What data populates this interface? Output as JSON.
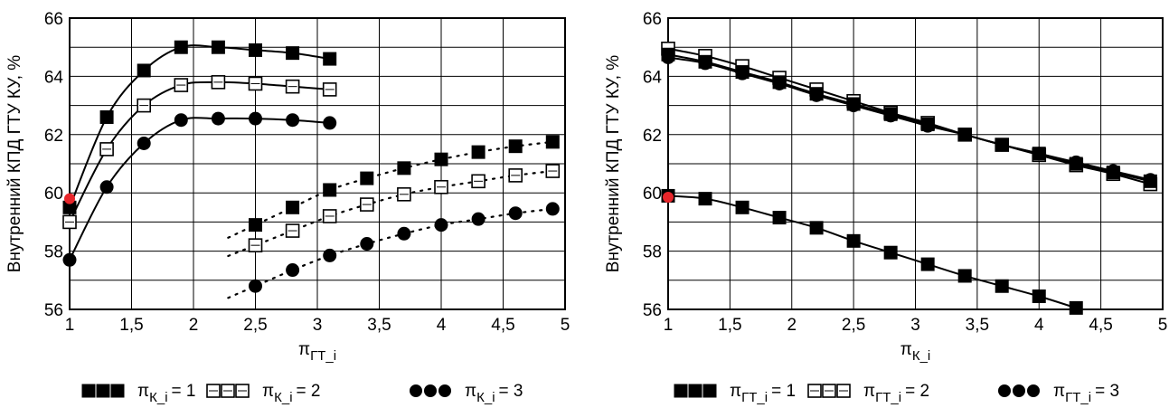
{
  "chart_data": [
    {
      "type": "line",
      "title": "",
      "xlabel": {
        "base": "π",
        "sub": "ГТ_i"
      },
      "ylabel": "Внутренний КПД ГТУ КУ, %",
      "xlim": [
        1,
        5
      ],
      "ylim": [
        56,
        66
      ],
      "xticks": [
        1,
        1.5,
        2,
        2.5,
        3,
        3.5,
        4,
        4.5,
        5
      ],
      "xtick_labels": [
        "1",
        "1,5",
        "2",
        "2,5",
        "3",
        "3,5",
        "4",
        "4,5",
        "5"
      ],
      "yticks": [
        56,
        58,
        60,
        62,
        64,
        66
      ],
      "ytick_labels": [
        "56",
        "58",
        "60",
        "62",
        "64",
        "66"
      ],
      "grid": true,
      "legend_position": "bottom",
      "highlight_point": {
        "x": 1,
        "y": 59.8,
        "color": "#e8262b"
      },
      "series": [
        {
          "name": "π",
          "name_sub": "К_i",
          "name_value": "= 1",
          "marker": "filled-square",
          "points": [
            [
              1.0,
              59.5
            ],
            [
              1.3,
              62.6
            ],
            [
              1.6,
              64.2
            ],
            [
              1.9,
              65.0
            ],
            [
              2.2,
              65.0
            ],
            [
              2.5,
              64.9
            ],
            [
              2.8,
              64.8
            ],
            [
              3.1,
              64.6
            ]
          ]
        },
        {
          "name": "π",
          "name_sub": "К_i",
          "name_value": "= 2",
          "marker": "open-square",
          "points": [
            [
              1.0,
              59.0
            ],
            [
              1.3,
              61.5
            ],
            [
              1.6,
              63.0
            ],
            [
              1.9,
              63.7
            ],
            [
              2.2,
              63.8
            ],
            [
              2.5,
              63.75
            ],
            [
              2.8,
              63.65
            ],
            [
              3.1,
              63.55
            ]
          ]
        },
        {
          "name": "π",
          "name_sub": "К_i",
          "name_value": "= 3",
          "marker": "filled-circle",
          "points": [
            [
              1.0,
              57.7
            ],
            [
              1.3,
              60.2
            ],
            [
              1.6,
              61.7
            ],
            [
              1.9,
              62.5
            ],
            [
              2.2,
              62.55
            ],
            [
              2.5,
              62.55
            ],
            [
              2.8,
              62.5
            ],
            [
              3.1,
              62.4
            ]
          ]
        },
        {
          "name": "",
          "marker": "filled-square",
          "dotted": true,
          "points": [
            [
              2.5,
              58.9
            ],
            [
              2.8,
              59.5
            ],
            [
              3.1,
              60.1
            ],
            [
              3.4,
              60.5
            ],
            [
              3.7,
              60.85
            ],
            [
              4.0,
              61.15
            ],
            [
              4.3,
              61.4
            ],
            [
              4.6,
              61.6
            ],
            [
              4.9,
              61.75
            ]
          ]
        },
        {
          "name": "",
          "marker": "open-square",
          "dotted": true,
          "points": [
            [
              2.5,
              58.2
            ],
            [
              2.8,
              58.7
            ],
            [
              3.1,
              59.2
            ],
            [
              3.4,
              59.6
            ],
            [
              3.7,
              59.95
            ],
            [
              4.0,
              60.2
            ],
            [
              4.3,
              60.4
            ],
            [
              4.6,
              60.6
            ],
            [
              4.9,
              60.75
            ]
          ]
        },
        {
          "name": "",
          "marker": "filled-circle",
          "dotted": true,
          "points": [
            [
              2.5,
              56.8
            ],
            [
              2.8,
              57.35
            ],
            [
              3.1,
              57.85
            ],
            [
              3.4,
              58.25
            ],
            [
              3.7,
              58.6
            ],
            [
              4.0,
              58.9
            ],
            [
              4.3,
              59.1
            ],
            [
              4.6,
              59.3
            ],
            [
              4.9,
              59.45
            ]
          ]
        }
      ]
    },
    {
      "type": "line",
      "title": "",
      "xlabel": {
        "base": "π",
        "sub": "К_i"
      },
      "ylabel": "Внутренний КПД ГТУ КУ, %",
      "xlim": [
        1,
        5
      ],
      "ylim": [
        56,
        66
      ],
      "xticks": [
        1,
        1.5,
        2,
        2.5,
        3,
        3.5,
        4,
        4.5,
        5
      ],
      "xtick_labels": [
        "1",
        "1,5",
        "2",
        "2,5",
        "3",
        "3,5",
        "4",
        "4,5",
        "5"
      ],
      "yticks": [
        56,
        58,
        60,
        62,
        64,
        66
      ],
      "ytick_labels": [
        "56",
        "58",
        "60",
        "62",
        "64",
        "66"
      ],
      "grid": true,
      "legend_position": "bottom",
      "highlight_point": {
        "x": 1,
        "y": 59.85,
        "color": "#e8262b"
      },
      "series": [
        {
          "name": "π",
          "name_sub": "ГТ_i",
          "name_value": "= 1",
          "marker": "filled-square",
          "points": [
            [
              1.0,
              59.9
            ],
            [
              1.3,
              59.8
            ],
            [
              1.6,
              59.5
            ],
            [
              1.9,
              59.15
            ],
            [
              2.2,
              58.8
            ],
            [
              2.5,
              58.35
            ],
            [
              2.8,
              57.95
            ],
            [
              3.1,
              57.55
            ],
            [
              3.4,
              57.15
            ],
            [
              3.7,
              56.8
            ],
            [
              4.0,
              56.45
            ],
            [
              4.3,
              56.05
            ]
          ]
        },
        {
          "name": "π",
          "name_sub": "ГТ_i",
          "name_value": "= 2",
          "marker": "open-square",
          "points": [
            [
              1.0,
              64.95
            ],
            [
              1.3,
              64.7
            ],
            [
              1.6,
              64.35
            ],
            [
              1.9,
              63.95
            ],
            [
              2.2,
              63.55
            ],
            [
              2.5,
              63.15
            ],
            [
              2.8,
              62.75
            ],
            [
              3.1,
              62.4
            ],
            [
              3.4,
              62.0
            ],
            [
              3.7,
              61.65
            ],
            [
              4.0,
              61.3
            ],
            [
              4.3,
              60.95
            ],
            [
              4.6,
              60.65
            ],
            [
              4.9,
              60.3
            ]
          ]
        },
        {
          "name": "π",
          "name_sub": "ГТ_i",
          "name_value": "= 3",
          "marker": "filled-circle",
          "points": [
            [
              1.0,
              64.65
            ],
            [
              1.3,
              64.45
            ],
            [
              1.6,
              64.1
            ],
            [
              1.9,
              63.75
            ],
            [
              2.2,
              63.35
            ],
            [
              2.5,
              63.0
            ],
            [
              2.8,
              62.65
            ],
            [
              3.1,
              62.3
            ],
            [
              3.4,
              62.0
            ],
            [
              3.7,
              61.65
            ],
            [
              4.0,
              61.35
            ],
            [
              4.3,
              61.05
            ],
            [
              4.6,
              60.75
            ],
            [
              4.9,
              60.45
            ]
          ]
        },
        {
          "name": "",
          "marker": "filled-square",
          "points": [
            [
              1.0,
              64.75
            ],
            [
              1.3,
              64.5
            ],
            [
              1.6,
              64.15
            ],
            [
              1.9,
              63.8
            ],
            [
              2.2,
              63.4
            ],
            [
              2.5,
              63.05
            ],
            [
              2.8,
              62.7
            ],
            [
              3.1,
              62.35
            ],
            [
              3.4,
              62.0
            ],
            [
              3.7,
              61.65
            ],
            [
              4.0,
              61.35
            ],
            [
              4.3,
              61.0
            ],
            [
              4.6,
              60.7
            ],
            [
              4.9,
              60.4
            ]
          ]
        }
      ]
    }
  ]
}
